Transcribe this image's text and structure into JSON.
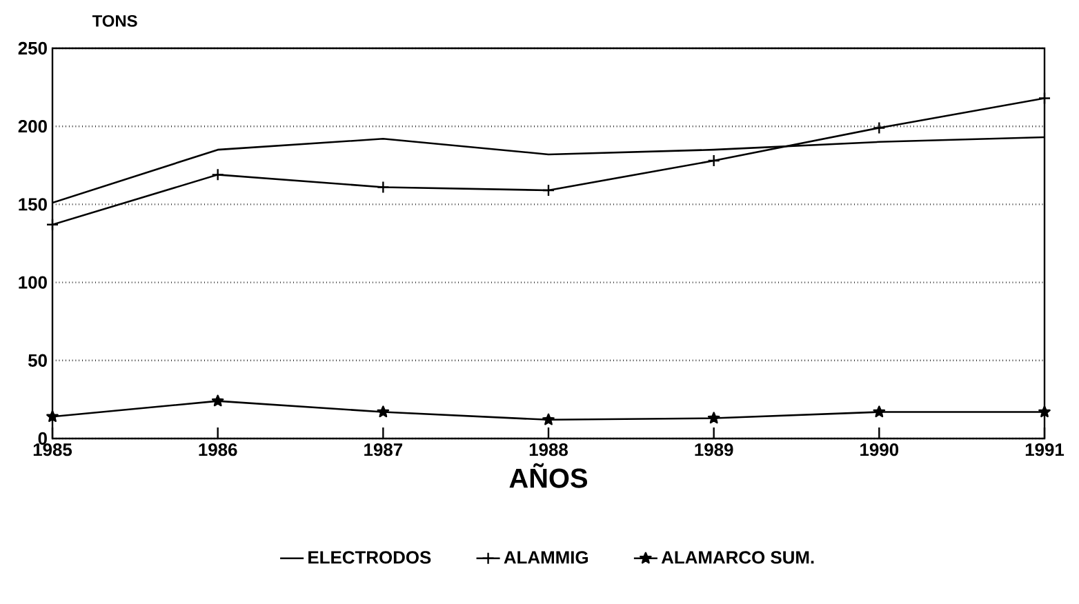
{
  "chart_data": {
    "type": "line",
    "ylabel": "TONS",
    "xlabel": "AÑOS",
    "categories": [
      "1985",
      "1986",
      "1987",
      "1988",
      "1989",
      "1990",
      "1991"
    ],
    "series": [
      {
        "name": "ELECTRODOS",
        "color": "#000000",
        "marker": "none",
        "values": [
          151,
          185,
          192,
          182,
          185,
          190,
          193
        ]
      },
      {
        "name": "ALAMMIG",
        "color": "#000000",
        "marker": "cross",
        "values": [
          137,
          169,
          161,
          159,
          178,
          199,
          218
        ]
      },
      {
        "name": "ALAMARCO SUM.",
        "color": "#000000",
        "marker": "star",
        "values": [
          14,
          24,
          17,
          12,
          13,
          17,
          17
        ]
      }
    ],
    "ylim": [
      0,
      250
    ],
    "yticks": [
      0,
      50,
      100,
      150,
      200,
      250
    ],
    "grid": "y",
    "legend": "bottom",
    "line_style": "solid"
  }
}
